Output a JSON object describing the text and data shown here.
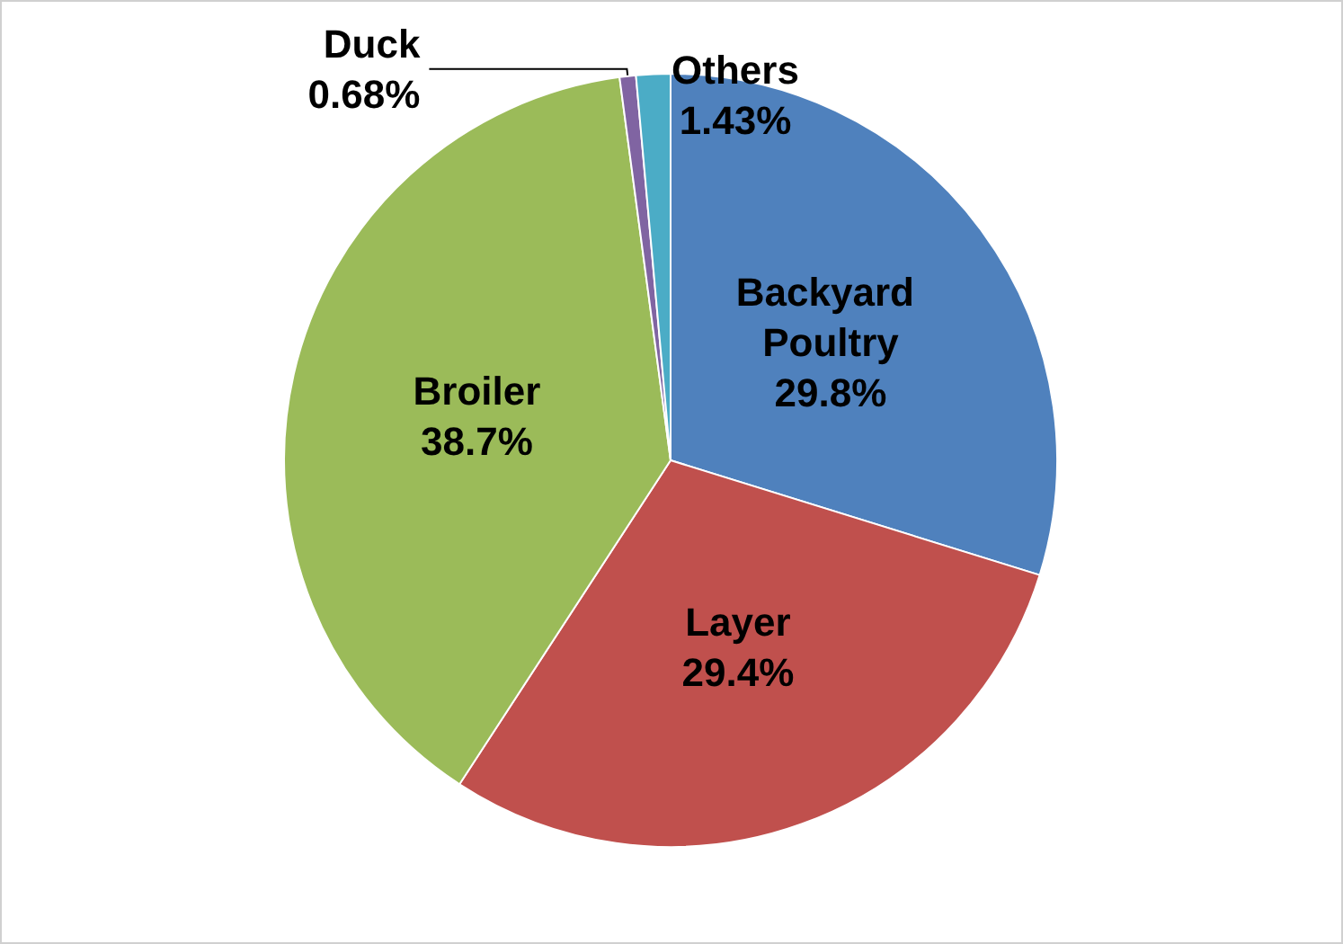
{
  "chart_data": {
    "type": "pie",
    "categories": [
      "Backyard Poultry",
      "Layer",
      "Broiler",
      "Duck",
      "Others"
    ],
    "values": [
      29.8,
      29.4,
      38.7,
      0.68,
      1.43
    ],
    "value_labels": [
      "29.8%",
      "29.4%",
      "38.7%",
      "0.68%",
      "1.43%"
    ],
    "colors": [
      "#4f81bd",
      "#c0504d",
      "#9bbb59",
      "#8064a2",
      "#4bacc6"
    ],
    "legend": false
  }
}
